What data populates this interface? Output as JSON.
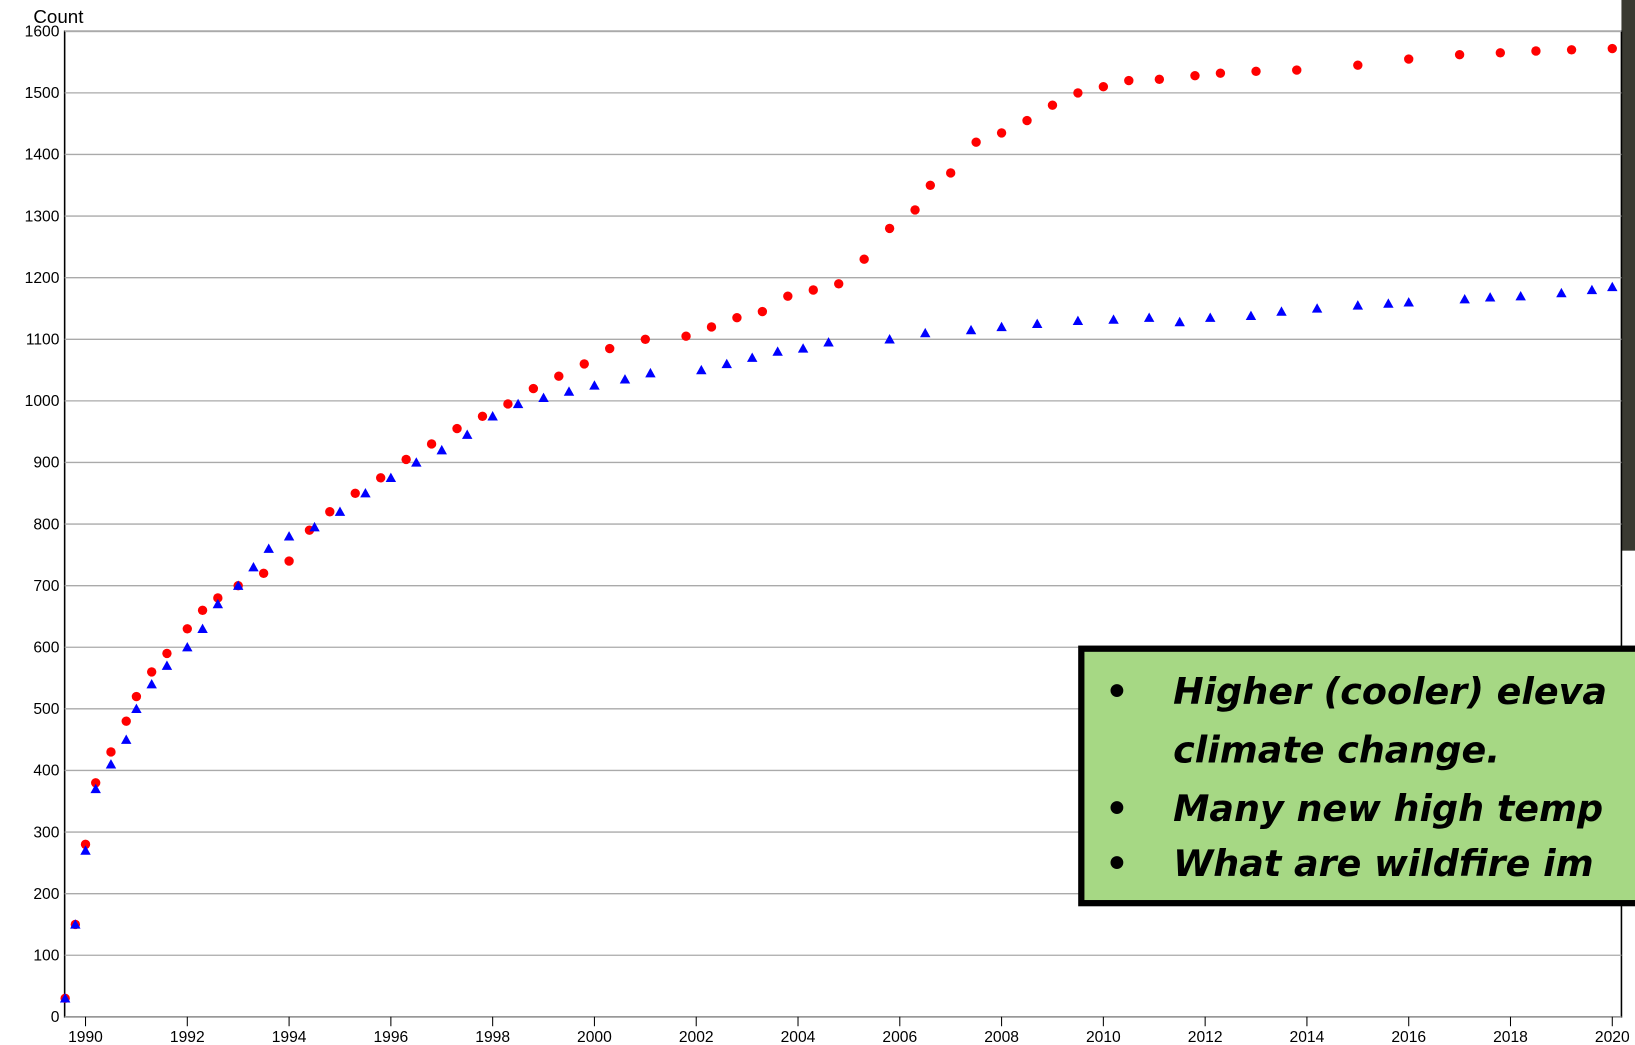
{
  "chart_data": {
    "type": "scatter",
    "y_label": "Count",
    "xlim": [
      1989.59,
      2020.18
    ],
    "ylim": [
      0,
      1600
    ],
    "xticks": [
      1990,
      1992,
      1994,
      1996,
      1998,
      2000,
      2002,
      2004,
      2006,
      2008,
      2010,
      2012,
      2014,
      2016,
      2018,
      2020
    ],
    "yticks": [
      0,
      100,
      200,
      300,
      400,
      500,
      600,
      700,
      800,
      900,
      1000,
      1100,
      1200,
      1300,
      1400,
      1500,
      1600
    ],
    "grid": true,
    "series": [
      {
        "color": "#ff0000",
        "marker": "circle",
        "x": [
          1989.6,
          1989.8,
          1990.0,
          1990.2,
          1990.5,
          1990.8,
          1991.0,
          1991.3,
          1991.6,
          1992.0,
          1992.3,
          1992.6,
          1993.0,
          1993.5,
          1994.0,
          1994.4,
          1994.8,
          1995.3,
          1995.8,
          1996.3,
          1996.8,
          1997.3,
          1997.8,
          1998.3,
          1998.8,
          1999.3,
          1999.8,
          2000.3,
          2001.0,
          2001.8,
          2002.3,
          2002.8,
          2003.3,
          2003.8,
          2004.3,
          2004.8,
          2005.3,
          2005.8,
          2006.3,
          2006.6,
          2007.0,
          2007.5,
          2008.0,
          2008.5,
          2009.0,
          2009.5,
          2010.0,
          2010.5,
          2011.1,
          2011.8,
          2012.3,
          2013.0,
          2013.8,
          2015.0,
          2016.0,
          2017.0,
          2017.8,
          2018.5,
          2019.2,
          2020.0
        ],
        "values": [
          30,
          150,
          280,
          380,
          430,
          480,
          520,
          560,
          590,
          630,
          660,
          680,
          700,
          720,
          740,
          790,
          820,
          850,
          875,
          905,
          930,
          955,
          975,
          995,
          1020,
          1040,
          1060,
          1085,
          1100,
          1105,
          1120,
          1135,
          1145,
          1170,
          1180,
          1190,
          1230,
          1280,
          1310,
          1350,
          1370,
          1420,
          1435,
          1455,
          1480,
          1500,
          1510,
          1520,
          1522,
          1528,
          1532,
          1535,
          1537,
          1545,
          1555,
          1562,
          1565,
          1568,
          1570,
          1572
        ]
      },
      {
        "color": "#0000ff",
        "marker": "triangle",
        "x": [
          1989.6,
          1989.8,
          1990.0,
          1990.2,
          1990.5,
          1990.8,
          1991.0,
          1991.3,
          1991.6,
          1992.0,
          1992.3,
          1992.6,
          1993.0,
          1993.3,
          1993.6,
          1994.0,
          1994.5,
          1995.0,
          1995.5,
          1996.0,
          1996.5,
          1997.0,
          1997.5,
          1998.0,
          1998.5,
          1999.0,
          1999.5,
          2000.0,
          2000.6,
          2001.1,
          2002.1,
          2002.6,
          2003.1,
          2003.6,
          2004.1,
          2004.6,
          2005.8,
          2006.5,
          2007.4,
          2008.0,
          2008.7,
          2009.5,
          2010.2,
          2010.9,
          2011.5,
          2012.1,
          2012.9,
          2013.5,
          2014.2,
          2015.0,
          2015.6,
          2016.0,
          2017.1,
          2017.6,
          2018.2,
          2019.0,
          2019.6,
          2020.0
        ],
        "values": [
          30,
          150,
          270,
          370,
          410,
          450,
          500,
          540,
          570,
          600,
          630,
          670,
          700,
          730,
          760,
          780,
          795,
          820,
          850,
          875,
          900,
          920,
          945,
          975,
          995,
          1005,
          1015,
          1025,
          1035,
          1045,
          1050,
          1060,
          1070,
          1080,
          1085,
          1095,
          1100,
          1110,
          1115,
          1120,
          1125,
          1130,
          1132,
          1135,
          1128,
          1135,
          1138,
          1145,
          1150,
          1155,
          1158,
          1160,
          1165,
          1168,
          1170,
          1175,
          1180,
          1185
        ]
      }
    ],
    "annotations": [
      "Higher (cooler) eleva",
      "climate change.",
      "Many new high temp",
      "What are wildfire im"
    ]
  }
}
